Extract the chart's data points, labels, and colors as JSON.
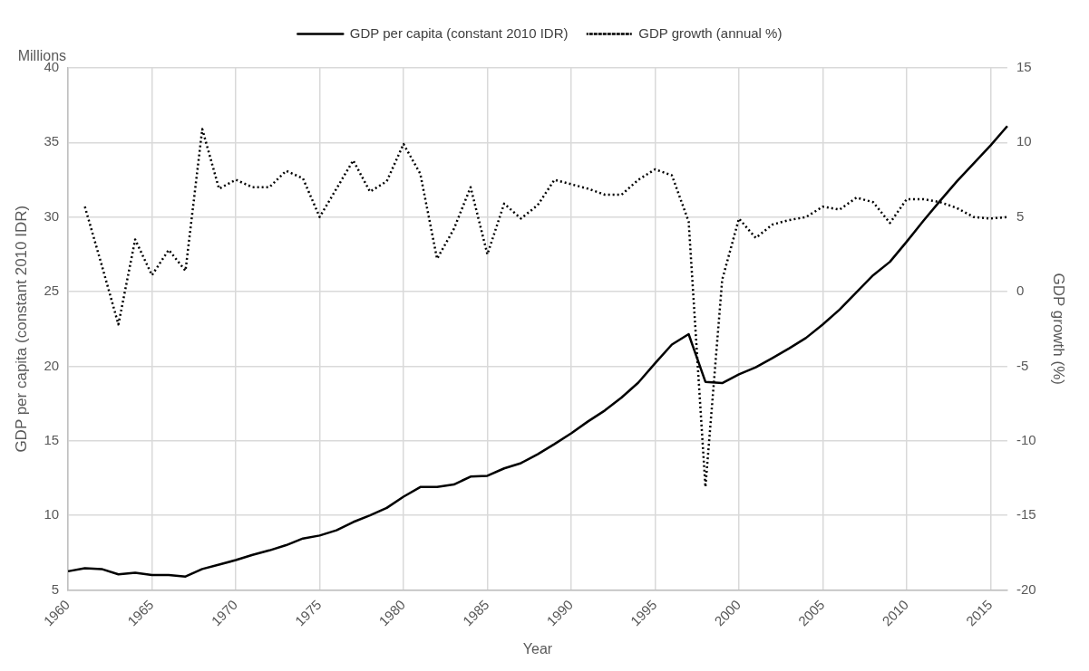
{
  "chart_data": {
    "type": "line",
    "categories": [
      "1960",
      null,
      null,
      null,
      null,
      "1965",
      null,
      null,
      null,
      null,
      "1970",
      null,
      null,
      null,
      null,
      "1975",
      null,
      null,
      null,
      null,
      "1980",
      null,
      null,
      null,
      null,
      "1985",
      null,
      null,
      null,
      null,
      "1990",
      null,
      null,
      null,
      null,
      "1995",
      null,
      null,
      null,
      null,
      "2000",
      null,
      null,
      null,
      null,
      "2005",
      null,
      null,
      null,
      null,
      "2010",
      null,
      null,
      null,
      null,
      "2015",
      null
    ],
    "series": [
      {
        "name": "GDP per capita (constant 2010 IDR)",
        "color": "#000000",
        "line_style": "solid",
        "values": [
          6.25,
          6.45,
          6.4,
          6.05,
          6.15,
          6.0,
          6.0,
          5.9,
          6.4,
          6.7,
          7.0,
          7.35,
          7.65,
          8.0,
          8.45,
          8.65,
          9.0,
          9.55,
          10.0,
          10.5,
          11.25,
          11.9,
          11.9,
          12.07,
          12.6,
          12.65,
          13.15,
          13.5,
          14.1,
          14.78,
          15.5,
          16.3,
          17.03,
          17.9,
          18.9,
          20.2,
          21.45,
          22.15,
          18.95,
          18.87,
          19.46,
          19.93,
          20.55,
          21.2,
          21.9,
          22.8,
          23.8,
          24.95,
          26.1,
          27.0,
          28.35,
          29.75,
          31.1,
          32.4,
          33.6,
          34.8,
          36.1
        ]
      },
      {
        "name": "GDP growth (annual %)",
        "color": "#000000",
        "line_style": "dotted",
        "axis": "y2",
        "values": [
          null,
          5.7,
          1.8,
          -2.2,
          3.5,
          1.1,
          2.8,
          1.4,
          10.9,
          6.9,
          7.5,
          7.0,
          7.0,
          8.1,
          7.6,
          5.0,
          6.9,
          8.8,
          6.7,
          7.4,
          9.9,
          7.9,
          2.2,
          4.2,
          7.0,
          2.5,
          5.9,
          4.9,
          5.8,
          7.5,
          7.2,
          6.9,
          6.5,
          6.5,
          7.5,
          8.2,
          7.8,
          4.7,
          -13.1,
          0.8,
          4.9,
          3.6,
          4.5,
          4.8,
          5.0,
          5.7,
          5.5,
          6.3,
          6.0,
          4.6,
          6.2,
          6.2,
          6.0,
          5.6,
          5.0,
          4.9,
          5.0
        ]
      }
    ],
    "xlabel": "Year",
    "ylabel": "GDP per capita (constant 2010 IDR)",
    "y2label": "GDP growth (%)",
    "ylim": [
      5,
      40
    ],
    "yticks": [
      5,
      10,
      15,
      20,
      25,
      30,
      35,
      40
    ],
    "y2lim": [
      -20,
      15
    ],
    "y2ticks": [
      -20,
      -15,
      -10,
      -5,
      0,
      5,
      10,
      15
    ],
    "annotations": [
      "Millions"
    ],
    "grid": true,
    "legend": "top",
    "marker": "none"
  }
}
